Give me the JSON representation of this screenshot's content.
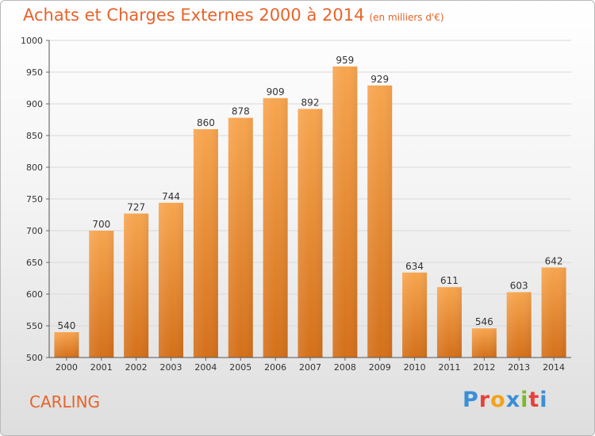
{
  "header": {
    "title": "Achats et Charges Externes 2000 à 2014",
    "subtitle": "(en milliers d'€)"
  },
  "footer": {
    "place": "CARLING",
    "brand": "Proxiti"
  },
  "colors": {
    "bar_light": "#f7a54f",
    "bar_dark": "#d4701a",
    "title": "#e8632a",
    "grid": "#d8d8d8"
  },
  "chart_data": {
    "type": "bar",
    "title": "Achats et Charges Externes 2000 à 2014",
    "subtitle": "(en milliers d'€)",
    "categories": [
      "2000",
      "2001",
      "2002",
      "2003",
      "2004",
      "2005",
      "2006",
      "2007",
      "2008",
      "2009",
      "2010",
      "2011",
      "2012",
      "2013",
      "2014"
    ],
    "values": [
      540,
      700,
      727,
      744,
      860,
      878,
      909,
      892,
      959,
      929,
      634,
      611,
      546,
      603,
      642
    ],
    "ylim": [
      500,
      1000
    ],
    "yticks": [
      500,
      550,
      600,
      650,
      700,
      750,
      800,
      850,
      900,
      950,
      1000
    ],
    "grid": true,
    "xlabel": "",
    "ylabel": ""
  }
}
